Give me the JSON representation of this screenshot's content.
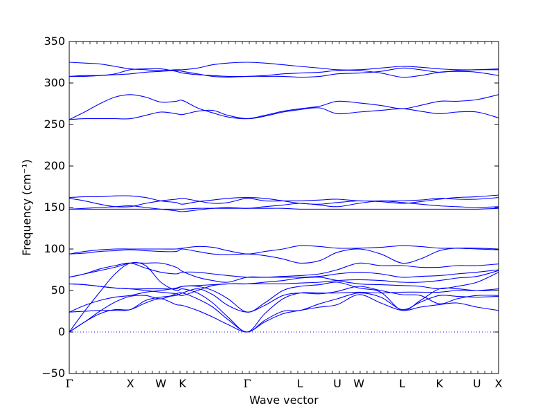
{
  "chart_data": {
    "type": "line",
    "xlabel": "Wave vector",
    "ylabel": "Frequency (cm⁻¹)",
    "ylim": [
      -50,
      350
    ],
    "yticks": [
      -50,
      0,
      50,
      100,
      150,
      200,
      250,
      300,
      350
    ],
    "grid": false,
    "line_color": "#0000ff",
    "zero_line_color": "#0000ff",
    "kpath": [
      {
        "label": "Γ",
        "x": 0
      },
      {
        "label": "X",
        "x": 1.0
      },
      {
        "label": "W",
        "x": 1.5
      },
      {
        "label": "K",
        "x": 1.854
      },
      {
        "label": "Γ",
        "x": 2.914
      },
      {
        "label": "L",
        "x": 3.78
      },
      {
        "label": "U",
        "x": 4.39
      },
      {
        "label": "W",
        "x": 4.744
      },
      {
        "label": "L",
        "x": 5.451
      },
      {
        "label": "K",
        "x": 6.063
      },
      {
        "label": "U",
        "x": 6.677
      },
      {
        "label": "X",
        "x": 7.031
      }
    ],
    "branches": [
      {
        "x": [
          0.0,
          0.25,
          0.5,
          0.75,
          1.0,
          1.25,
          1.5,
          1.75,
          1.854,
          2.1,
          2.35,
          2.6,
          2.914,
          3.2,
          3.5,
          3.78,
          4.1,
          4.39,
          4.744,
          5.1,
          5.451,
          5.75,
          6.063,
          6.35,
          6.677,
          7.031
        ],
        "series": [
          {
            "values": [
              0,
              12,
              22,
              27,
              27,
              35,
              40,
              33,
              32,
              26,
              18,
              9,
              0,
              12,
              22,
              26,
              30,
              33,
              45,
              35,
              26,
              30,
              33,
              35,
              30,
              26
            ]
          },
          {
            "values": [
              0,
              12,
              25,
              36,
              43,
              44,
              40,
              46,
              47,
              40,
              30,
              15,
              0,
              14,
              25,
              26,
              34,
              40,
              47,
              42,
              27,
              36,
              44,
              43,
              42,
              43
            ]
          },
          {
            "values": [
              0,
              25,
              48,
              70,
              83,
              80,
              60,
              50,
              52,
              47,
              35,
              18,
              0,
              22,
              40,
              47,
              47,
              47,
              48,
              47,
              48,
              48,
              48,
              50,
              50,
              52
            ]
          },
          {
            "values": [
              24,
              25,
              26,
              26,
              27,
              38,
              42,
              44,
              47,
              52,
              45,
              32,
              24,
              32,
              44,
              47,
              46,
              49,
              55,
              50,
              45,
              44,
              34,
              40,
              44,
              44
            ]
          },
          {
            "values": [
              24,
              32,
              38,
              42,
              44,
              48,
              50,
              53,
              55,
              55,
              50,
              40,
              24,
              35,
              50,
              55,
              57,
              60,
              53,
              48,
              26,
              38,
              52,
              52,
              50,
              50
            ]
          },
          {
            "values": [
              58,
              57,
              55,
              53,
              52,
              52,
              52,
              52,
              55,
              56,
              57,
              58,
              58,
              60,
              62,
              65,
              66,
              62,
              58,
              57,
              56,
              55,
              52,
              55,
              60,
              72
            ]
          },
          {
            "values": [
              58,
              57,
              55,
              53,
              52,
              50,
              48,
              46,
              44,
              50,
              56,
              58,
              58,
              58,
              58,
              59,
              60,
              62,
              63,
              62,
              60,
              60,
              62,
              65,
              67,
              74
            ]
          },
          {
            "values": [
              66,
              70,
              74,
              78,
              83,
              83,
              83,
              78,
              73,
              66,
              62,
              60,
              66,
              66,
              66,
              66,
              67,
              70,
              72,
              70,
              66,
              67,
              68,
              70,
              72,
              75
            ]
          },
          {
            "values": [
              66,
              70,
              76,
              80,
              83,
              77,
              72,
              70,
              72,
              72,
              70,
              68,
              66,
              66,
              67,
              68,
              70,
              75,
              83,
              80,
              80,
              78,
              78,
              80,
              80,
              82
            ]
          },
          {
            "values": [
              94,
              97,
              99,
              100,
              100,
              100,
              100,
              100,
              101,
              103,
              102,
              98,
              94,
              97,
              100,
              104,
              103,
              101,
              101,
              102,
              104,
              103,
              101,
              101,
              100,
              99
            ]
          },
          {
            "values": [
              94,
              95,
              97,
              98,
              99,
              98,
              97,
              97,
              100,
              97,
              94,
              93,
              94,
              92,
              88,
              83,
              86,
              96,
              100,
              94,
              83,
              88,
              98,
              101,
              101,
              100
            ]
          },
          {
            "values": [
              148,
              148,
              148,
              148,
              148,
              148,
              148,
              148,
              148,
              149,
              149,
              149,
              149,
              149,
              149,
              148,
              148,
              148,
              148,
              148,
              148,
              148,
              148,
              148,
              148,
              149
            ]
          },
          {
            "values": [
              148,
              149,
              150,
              151,
              152,
              150,
              148,
              146,
              145,
              147,
              149,
              150,
              149,
              151,
              153,
              155,
              153,
              151,
              155,
              158,
              156,
              154,
              152,
              151,
              150,
              151
            ]
          },
          {
            "values": [
              161,
              158,
              154,
              151,
              151,
              155,
              158,
              160,
              161,
              158,
              155,
              156,
              161,
              158,
              158,
              158,
              159,
              160,
              158,
              158,
              158,
              159,
              161,
              160,
              160,
              162
            ]
          },
          {
            "values": [
              162,
              163,
              163,
              164,
              164,
              162,
              158,
              156,
              154,
              157,
              159,
              161,
              162,
              161,
              158,
              155,
              154,
              156,
              158,
              157,
              155,
              157,
              160,
              162,
              163,
              165
            ]
          },
          {
            "values": [
              256,
              257,
              257,
              257,
              257,
              261,
              265,
              263,
              262,
              266,
              267,
              261,
              257,
              260,
              265,
              268,
              270,
              263,
              265,
              267,
              269,
              266,
              263,
              265,
              265,
              258
            ]
          },
          {
            "values": [
              256,
              265,
              275,
              283,
              286,
              283,
              277,
              278,
              279,
              270,
              264,
              259,
              257,
              261,
              266,
              269,
              272,
              278,
              276,
              273,
              269,
              273,
              278,
              278,
              280,
              286
            ]
          },
          {
            "values": [
              308,
              308,
              309,
              311,
              316,
              317,
              317,
              314,
              312,
              310,
              309,
              308,
              308,
              309,
              311,
              312,
              313,
              315,
              315,
              312,
              307,
              309,
              313,
              314,
              313,
              309
            ]
          },
          {
            "values": [
              308,
              309,
              309,
              310,
              311,
              313,
              314,
              315,
              314,
              311,
              308,
              307,
              308,
              308,
              308,
              307,
              308,
              311,
              312,
              314,
              318,
              316,
              313,
              315,
              316,
              316
            ]
          },
          {
            "values": [
              325,
              324,
              323,
              320,
              317,
              316,
              315,
              316,
              316,
              318,
              322,
              324,
              325,
              324,
              322,
              320,
              318,
              316,
              316,
              318,
              320,
              319,
              317,
              316,
              316,
              317
            ]
          }
        ]
      }
    ]
  }
}
